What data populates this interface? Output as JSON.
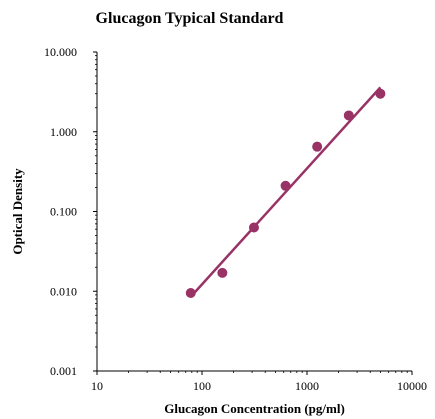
{
  "chart_data": {
    "type": "scatter",
    "title": "Glucagon Typical Standard",
    "xlabel": "Glucagon Concentration (pg/ml)",
    "ylabel": "Optical Density",
    "x_scale": "log",
    "y_scale": "log",
    "xlim": [
      10,
      10000
    ],
    "ylim": [
      0.001,
      10
    ],
    "x_ticks": [
      10,
      100,
      1000,
      10000
    ],
    "x_tick_labels": [
      "10",
      "100",
      "1000",
      "10000"
    ],
    "y_ticks": [
      0.001,
      0.01,
      0.1,
      1,
      10
    ],
    "y_tick_labels": [
      "0.001",
      "0.010",
      "0.100",
      "1.000",
      "10.000"
    ],
    "grid": false,
    "legend": "none",
    "series": [
      {
        "points": [
          {
            "x": 78.125,
            "y": 0.0095
          },
          {
            "x": 156.25,
            "y": 0.017
          },
          {
            "x": 312.5,
            "y": 0.063
          },
          {
            "x": 625,
            "y": 0.21
          },
          {
            "x": 1250,
            "y": 0.65
          },
          {
            "x": 2500,
            "y": 1.6
          },
          {
            "x": 5000,
            "y": 3.0
          }
        ],
        "color": "#993366",
        "trendline": {
          "type": "power",
          "x_range": [
            78,
            5000
          ],
          "y_range": [
            0.0085,
            3.6
          ]
        }
      }
    ]
  }
}
